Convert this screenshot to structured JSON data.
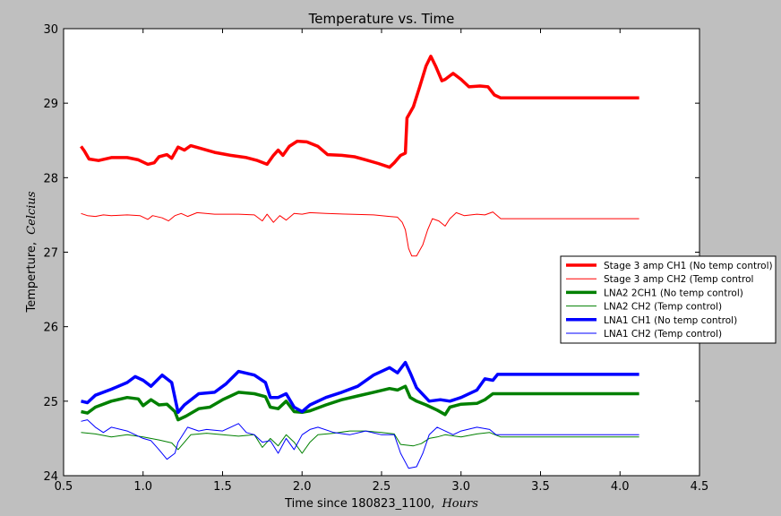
{
  "chart_data": {
    "type": "line",
    "title": "Temperature vs. Time",
    "xlabel": "Time since 180823_1100,",
    "xlabel_unit": "Hours",
    "ylabel": "Temperture,",
    "ylabel_unit": "Celcius",
    "xlim": [
      0.5,
      4.5
    ],
    "ylim": [
      24,
      30
    ],
    "xticks": [
      "0.5",
      "1.0",
      "1.5",
      "2.0",
      "2.5",
      "3.0",
      "3.5",
      "4.0",
      "4.5"
    ],
    "yticks": [
      "24",
      "25",
      "26",
      "27",
      "28",
      "29",
      "30"
    ],
    "grid": false,
    "legend_position": "right",
    "series": [
      {
        "name": "Stage 3 amp CH1 (No temp control)",
        "color": "#ff0000",
        "width": 3.5,
        "points": [
          [
            0.61,
            28.42
          ],
          [
            0.63,
            28.36
          ],
          [
            0.66,
            28.25
          ],
          [
            0.72,
            28.23
          ],
          [
            0.8,
            28.27
          ],
          [
            0.9,
            28.27
          ],
          [
            0.97,
            28.24
          ],
          [
            1.03,
            28.18
          ],
          [
            1.07,
            28.2
          ],
          [
            1.1,
            28.28
          ],
          [
            1.15,
            28.31
          ],
          [
            1.18,
            28.26
          ],
          [
            1.22,
            28.41
          ],
          [
            1.26,
            28.37
          ],
          [
            1.3,
            28.43
          ],
          [
            1.35,
            28.4
          ],
          [
            1.45,
            28.34
          ],
          [
            1.55,
            28.3
          ],
          [
            1.65,
            28.27
          ],
          [
            1.72,
            28.23
          ],
          [
            1.78,
            28.18
          ],
          [
            1.82,
            28.3
          ],
          [
            1.85,
            28.37
          ],
          [
            1.88,
            28.3
          ],
          [
            1.92,
            28.42
          ],
          [
            1.97,
            28.49
          ],
          [
            2.03,
            28.48
          ],
          [
            2.1,
            28.42
          ],
          [
            2.16,
            28.31
          ],
          [
            2.25,
            28.3
          ],
          [
            2.33,
            28.28
          ],
          [
            2.4,
            28.24
          ],
          [
            2.48,
            28.19
          ],
          [
            2.55,
            28.14
          ],
          [
            2.58,
            28.2
          ],
          [
            2.62,
            28.3
          ],
          [
            2.65,
            28.33
          ],
          [
            2.66,
            28.8
          ],
          [
            2.7,
            28.95
          ],
          [
            2.74,
            29.22
          ],
          [
            2.78,
            29.5
          ],
          [
            2.81,
            29.63
          ],
          [
            2.84,
            29.5
          ],
          [
            2.88,
            29.3
          ],
          [
            2.9,
            29.32
          ],
          [
            2.95,
            29.4
          ],
          [
            3.0,
            29.32
          ],
          [
            3.05,
            29.22
          ],
          [
            3.12,
            29.23
          ],
          [
            3.17,
            29.22
          ],
          [
            3.21,
            29.11
          ],
          [
            3.25,
            29.07
          ],
          [
            3.5,
            29.07
          ],
          [
            4.12,
            29.07
          ]
        ]
      },
      {
        "name": "Stage 3 amp CH2 (Temp control",
        "color": "#ff0000",
        "width": 1,
        "points": [
          [
            0.61,
            27.52
          ],
          [
            0.65,
            27.49
          ],
          [
            0.7,
            27.48
          ],
          [
            0.75,
            27.5
          ],
          [
            0.8,
            27.49
          ],
          [
            0.9,
            27.5
          ],
          [
            0.98,
            27.49
          ],
          [
            1.03,
            27.44
          ],
          [
            1.06,
            27.49
          ],
          [
            1.12,
            27.46
          ],
          [
            1.16,
            27.42
          ],
          [
            1.2,
            27.49
          ],
          [
            1.24,
            27.52
          ],
          [
            1.28,
            27.48
          ],
          [
            1.34,
            27.53
          ],
          [
            1.45,
            27.51
          ],
          [
            1.6,
            27.51
          ],
          [
            1.7,
            27.5
          ],
          [
            1.75,
            27.42
          ],
          [
            1.78,
            27.51
          ],
          [
            1.82,
            27.4
          ],
          [
            1.86,
            27.49
          ],
          [
            1.9,
            27.43
          ],
          [
            1.95,
            27.52
          ],
          [
            2.0,
            27.51
          ],
          [
            2.05,
            27.53
          ],
          [
            2.15,
            27.52
          ],
          [
            2.3,
            27.51
          ],
          [
            2.45,
            27.5
          ],
          [
            2.55,
            27.48
          ],
          [
            2.6,
            27.47
          ],
          [
            2.63,
            27.4
          ],
          [
            2.65,
            27.3
          ],
          [
            2.67,
            27.05
          ],
          [
            2.69,
            26.95
          ],
          [
            2.72,
            26.95
          ],
          [
            2.76,
            27.1
          ],
          [
            2.79,
            27.3
          ],
          [
            2.82,
            27.45
          ],
          [
            2.86,
            27.42
          ],
          [
            2.9,
            27.35
          ],
          [
            2.93,
            27.45
          ],
          [
            2.97,
            27.53
          ],
          [
            3.02,
            27.49
          ],
          [
            3.1,
            27.51
          ],
          [
            3.15,
            27.5
          ],
          [
            3.2,
            27.54
          ],
          [
            3.25,
            27.45
          ],
          [
            3.5,
            27.45
          ],
          [
            4.12,
            27.45
          ]
        ]
      },
      {
        "name": "LNA2 2CH1 (No temp control)",
        "color": "#008000",
        "width": 3.5,
        "points": [
          [
            0.61,
            24.86
          ],
          [
            0.65,
            24.84
          ],
          [
            0.7,
            24.92
          ],
          [
            0.8,
            25.0
          ],
          [
            0.9,
            25.05
          ],
          [
            0.97,
            25.03
          ],
          [
            1.0,
            24.94
          ],
          [
            1.05,
            25.02
          ],
          [
            1.1,
            24.95
          ],
          [
            1.15,
            24.96
          ],
          [
            1.2,
            24.86
          ],
          [
            1.22,
            24.75
          ],
          [
            1.27,
            24.8
          ],
          [
            1.35,
            24.9
          ],
          [
            1.42,
            24.92
          ],
          [
            1.5,
            25.02
          ],
          [
            1.6,
            25.12
          ],
          [
            1.7,
            25.1
          ],
          [
            1.77,
            25.06
          ],
          [
            1.8,
            24.92
          ],
          [
            1.85,
            24.9
          ],
          [
            1.9,
            25.0
          ],
          [
            1.95,
            24.86
          ],
          [
            2.0,
            24.85
          ],
          [
            2.05,
            24.87
          ],
          [
            2.15,
            24.95
          ],
          [
            2.25,
            25.02
          ],
          [
            2.35,
            25.07
          ],
          [
            2.45,
            25.12
          ],
          [
            2.55,
            25.17
          ],
          [
            2.6,
            25.15
          ],
          [
            2.65,
            25.2
          ],
          [
            2.68,
            25.05
          ],
          [
            2.72,
            25.0
          ],
          [
            2.78,
            24.95
          ],
          [
            2.85,
            24.88
          ],
          [
            2.9,
            24.82
          ],
          [
            2.93,
            24.92
          ],
          [
            3.0,
            24.96
          ],
          [
            3.1,
            24.97
          ],
          [
            3.15,
            25.02
          ],
          [
            3.2,
            25.1
          ],
          [
            3.25,
            25.1
          ],
          [
            3.5,
            25.1
          ],
          [
            4.12,
            25.1
          ]
        ]
      },
      {
        "name": "LNA2 CH2  (Temp control)",
        "color": "#008000",
        "width": 1,
        "points": [
          [
            0.61,
            24.58
          ],
          [
            0.7,
            24.56
          ],
          [
            0.8,
            24.52
          ],
          [
            0.9,
            24.55
          ],
          [
            1.0,
            24.52
          ],
          [
            1.1,
            24.48
          ],
          [
            1.18,
            24.44
          ],
          [
            1.22,
            24.35
          ],
          [
            1.3,
            24.55
          ],
          [
            1.4,
            24.57
          ],
          [
            1.5,
            24.55
          ],
          [
            1.6,
            24.53
          ],
          [
            1.7,
            24.55
          ],
          [
            1.75,
            24.38
          ],
          [
            1.8,
            24.5
          ],
          [
            1.85,
            24.4
          ],
          [
            1.9,
            24.55
          ],
          [
            1.95,
            24.45
          ],
          [
            2.0,
            24.3
          ],
          [
            2.05,
            24.45
          ],
          [
            2.1,
            24.55
          ],
          [
            2.2,
            24.57
          ],
          [
            2.3,
            24.6
          ],
          [
            2.4,
            24.6
          ],
          [
            2.5,
            24.58
          ],
          [
            2.58,
            24.56
          ],
          [
            2.62,
            24.42
          ],
          [
            2.7,
            24.4
          ],
          [
            2.75,
            24.43
          ],
          [
            2.8,
            24.5
          ],
          [
            2.85,
            24.52
          ],
          [
            2.9,
            24.55
          ],
          [
            3.0,
            24.52
          ],
          [
            3.1,
            24.56
          ],
          [
            3.18,
            24.58
          ],
          [
            3.25,
            24.52
          ],
          [
            3.5,
            24.52
          ],
          [
            4.12,
            24.52
          ]
        ]
      },
      {
        "name": "LNA1 CH1 (No temp control)",
        "color": "#0000ff",
        "width": 3.5,
        "points": [
          [
            0.61,
            25.0
          ],
          [
            0.65,
            24.98
          ],
          [
            0.7,
            25.08
          ],
          [
            0.8,
            25.16
          ],
          [
            0.9,
            25.25
          ],
          [
            0.95,
            25.33
          ],
          [
            1.0,
            25.28
          ],
          [
            1.05,
            25.2
          ],
          [
            1.12,
            25.35
          ],
          [
            1.18,
            25.25
          ],
          [
            1.22,
            24.85
          ],
          [
            1.26,
            24.95
          ],
          [
            1.35,
            25.1
          ],
          [
            1.45,
            25.12
          ],
          [
            1.52,
            25.23
          ],
          [
            1.6,
            25.4
          ],
          [
            1.7,
            25.35
          ],
          [
            1.77,
            25.25
          ],
          [
            1.8,
            25.05
          ],
          [
            1.85,
            25.05
          ],
          [
            1.9,
            25.1
          ],
          [
            1.95,
            24.92
          ],
          [
            2.0,
            24.86
          ],
          [
            2.05,
            24.95
          ],
          [
            2.15,
            25.05
          ],
          [
            2.25,
            25.12
          ],
          [
            2.35,
            25.2
          ],
          [
            2.45,
            25.35
          ],
          [
            2.55,
            25.45
          ],
          [
            2.6,
            25.38
          ],
          [
            2.65,
            25.52
          ],
          [
            2.68,
            25.38
          ],
          [
            2.72,
            25.18
          ],
          [
            2.8,
            25.0
          ],
          [
            2.87,
            25.02
          ],
          [
            2.93,
            25.0
          ],
          [
            3.0,
            25.05
          ],
          [
            3.1,
            25.15
          ],
          [
            3.15,
            25.3
          ],
          [
            3.2,
            25.28
          ],
          [
            3.23,
            25.36
          ],
          [
            3.5,
            25.36
          ],
          [
            4.12,
            25.36
          ]
        ]
      },
      {
        "name": "LNA1 CH2  (Temp control)",
        "color": "#0000ff",
        "width": 1,
        "points": [
          [
            0.61,
            24.73
          ],
          [
            0.65,
            24.75
          ],
          [
            0.7,
            24.65
          ],
          [
            0.75,
            24.58
          ],
          [
            0.8,
            24.65
          ],
          [
            0.9,
            24.6
          ],
          [
            1.0,
            24.5
          ],
          [
            1.05,
            24.47
          ],
          [
            1.1,
            24.35
          ],
          [
            1.15,
            24.22
          ],
          [
            1.2,
            24.3
          ],
          [
            1.22,
            24.45
          ],
          [
            1.28,
            24.65
          ],
          [
            1.35,
            24.6
          ],
          [
            1.4,
            24.62
          ],
          [
            1.5,
            24.6
          ],
          [
            1.6,
            24.7
          ],
          [
            1.65,
            24.58
          ],
          [
            1.7,
            24.55
          ],
          [
            1.75,
            24.45
          ],
          [
            1.8,
            24.47
          ],
          [
            1.85,
            24.3
          ],
          [
            1.9,
            24.5
          ],
          [
            1.95,
            24.35
          ],
          [
            2.0,
            24.55
          ],
          [
            2.05,
            24.62
          ],
          [
            2.1,
            24.65
          ],
          [
            2.2,
            24.58
          ],
          [
            2.3,
            24.55
          ],
          [
            2.4,
            24.6
          ],
          [
            2.5,
            24.55
          ],
          [
            2.58,
            24.55
          ],
          [
            2.62,
            24.3
          ],
          [
            2.67,
            24.1
          ],
          [
            2.72,
            24.12
          ],
          [
            2.76,
            24.3
          ],
          [
            2.8,
            24.55
          ],
          [
            2.85,
            24.65
          ],
          [
            2.9,
            24.6
          ],
          [
            2.95,
            24.55
          ],
          [
            3.0,
            24.6
          ],
          [
            3.1,
            24.65
          ],
          [
            3.18,
            24.62
          ],
          [
            3.22,
            24.55
          ],
          [
            3.25,
            24.55
          ],
          [
            3.5,
            24.55
          ],
          [
            4.12,
            24.55
          ]
        ]
      }
    ]
  }
}
